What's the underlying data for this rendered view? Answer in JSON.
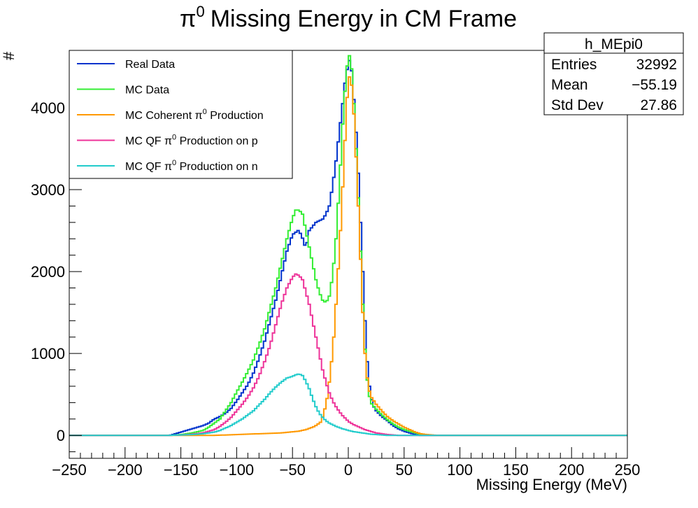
{
  "chart_data": {
    "type": "line",
    "title_main": "Missing Energy in CM Frame",
    "title_symbol": "π",
    "title_superscript": "0",
    "xlabel": "Missing Energy (MeV)",
    "ylabel": "#",
    "xlim": [
      -250,
      250
    ],
    "ylim": [
      -280,
      4700
    ],
    "x_ticks": [
      -250,
      -200,
      -150,
      -100,
      -50,
      0,
      50,
      100,
      150,
      200,
      250
    ],
    "x_tick_labels": [
      "−250",
      "−200",
      "−150",
      "−100",
      "−50",
      "0",
      "50",
      "100",
      "150",
      "200",
      "250"
    ],
    "y_ticks": [
      0,
      1000,
      2000,
      3000,
      4000
    ],
    "y_tick_labels": [
      "0",
      "1000",
      "2000",
      "3000",
      "4000"
    ],
    "grid": false,
    "legend_placement": "top-left",
    "stats_box": {
      "name": "h_MEpi0",
      "rows": [
        {
          "label": "Entries",
          "value": "32992"
        },
        {
          "label": "Mean",
          "value": "−55.19"
        },
        {
          "label": "Std Dev",
          "value": "27.86"
        }
      ]
    },
    "series": [
      {
        "name": "Real Data",
        "color": "#0033cc",
        "points": [
          [
            -250,
            0
          ],
          [
            -160,
            0
          ],
          [
            -155,
            20
          ],
          [
            -150,
            40
          ],
          [
            -145,
            60
          ],
          [
            -140,
            80
          ],
          [
            -135,
            100
          ],
          [
            -130,
            120
          ],
          [
            -125,
            150
          ],
          [
            -120,
            200
          ],
          [
            -115,
            230
          ],
          [
            -110,
            270
          ],
          [
            -105,
            330
          ],
          [
            -100,
            420
          ],
          [
            -95,
            520
          ],
          [
            -90,
            620
          ],
          [
            -85,
            760
          ],
          [
            -80,
            940
          ],
          [
            -75,
            1150
          ],
          [
            -70,
            1400
          ],
          [
            -65,
            1650
          ],
          [
            -60,
            1950
          ],
          [
            -55,
            2250
          ],
          [
            -50,
            2450
          ],
          [
            -45,
            2500
          ],
          [
            -42,
            2450
          ],
          [
            -38,
            2280
          ],
          [
            -35,
            2500
          ],
          [
            -32,
            2550
          ],
          [
            -29,
            2600
          ],
          [
            -26,
            2620
          ],
          [
            -23,
            2640
          ],
          [
            -20,
            2700
          ],
          [
            -17,
            2800
          ],
          [
            -14,
            3050
          ],
          [
            -11,
            3350
          ],
          [
            -8,
            3700
          ],
          [
            -5,
            4050
          ],
          [
            -3,
            4300
          ],
          [
            0,
            4550
          ],
          [
            2,
            4600
          ],
          [
            4,
            4300
          ],
          [
            6,
            3900
          ],
          [
            8,
            3500
          ],
          [
            10,
            2900
          ],
          [
            12,
            2300
          ],
          [
            14,
            1700
          ],
          [
            16,
            1100
          ],
          [
            18,
            700
          ],
          [
            20,
            500
          ],
          [
            22,
            370
          ],
          [
            25,
            300
          ],
          [
            30,
            230
          ],
          [
            35,
            180
          ],
          [
            40,
            120
          ],
          [
            45,
            80
          ],
          [
            50,
            50
          ],
          [
            55,
            30
          ],
          [
            60,
            10
          ],
          [
            65,
            0
          ],
          [
            250,
            0
          ]
        ]
      },
      {
        "name": "MC Data",
        "color": "#33ee33",
        "points": [
          [
            -250,
            0
          ],
          [
            -160,
            0
          ],
          [
            -150,
            10
          ],
          [
            -140,
            30
          ],
          [
            -130,
            60
          ],
          [
            -125,
            100
          ],
          [
            -120,
            150
          ],
          [
            -115,
            200
          ],
          [
            -110,
            300
          ],
          [
            -105,
            400
          ],
          [
            -100,
            530
          ],
          [
            -95,
            650
          ],
          [
            -90,
            780
          ],
          [
            -85,
            920
          ],
          [
            -80,
            1100
          ],
          [
            -75,
            1300
          ],
          [
            -70,
            1550
          ],
          [
            -65,
            1800
          ],
          [
            -60,
            2100
          ],
          [
            -55,
            2400
          ],
          [
            -50,
            2650
          ],
          [
            -47,
            2750
          ],
          [
            -44,
            2750
          ],
          [
            -41,
            2700
          ],
          [
            -38,
            2500
          ],
          [
            -35,
            2300
          ],
          [
            -32,
            2100
          ],
          [
            -29,
            1900
          ],
          [
            -26,
            1750
          ],
          [
            -23,
            1650
          ],
          [
            -20,
            1620
          ],
          [
            -17,
            1700
          ],
          [
            -14,
            1950
          ],
          [
            -11,
            2400
          ],
          [
            -8,
            3050
          ],
          [
            -5,
            3800
          ],
          [
            -2,
            4400
          ],
          [
            0,
            4620
          ],
          [
            2,
            4650
          ],
          [
            4,
            4300
          ],
          [
            6,
            3800
          ],
          [
            8,
            3200
          ],
          [
            10,
            2600
          ],
          [
            12,
            1900
          ],
          [
            14,
            1300
          ],
          [
            16,
            800
          ],
          [
            18,
            550
          ],
          [
            20,
            400
          ],
          [
            25,
            320
          ],
          [
            30,
            250
          ],
          [
            35,
            190
          ],
          [
            40,
            140
          ],
          [
            45,
            100
          ],
          [
            50,
            70
          ],
          [
            55,
            50
          ],
          [
            60,
            30
          ],
          [
            65,
            15
          ],
          [
            70,
            5
          ],
          [
            75,
            0
          ],
          [
            250,
            0
          ]
        ]
      },
      {
        "name": "MC Coherent π<sup>0</sup> Production",
        "color": "#ff9900",
        "points": [
          [
            -250,
            0
          ],
          [
            -160,
            0
          ],
          [
            -120,
            0
          ],
          [
            -100,
            10
          ],
          [
            -80,
            20
          ],
          [
            -60,
            30
          ],
          [
            -45,
            50
          ],
          [
            -38,
            70
          ],
          [
            -30,
            110
          ],
          [
            -25,
            160
          ],
          [
            -22,
            260
          ],
          [
            -19,
            450
          ],
          [
            -16,
            750
          ],
          [
            -13,
            1200
          ],
          [
            -10,
            1800
          ],
          [
            -7,
            2500
          ],
          [
            -4,
            3300
          ],
          [
            -2,
            3900
          ],
          [
            0,
            4350
          ],
          [
            2,
            4400
          ],
          [
            4,
            4150
          ],
          [
            6,
            3700
          ],
          [
            8,
            3100
          ],
          [
            10,
            2500
          ],
          [
            12,
            1800
          ],
          [
            14,
            1200
          ],
          [
            16,
            800
          ],
          [
            18,
            600
          ],
          [
            20,
            480
          ],
          [
            25,
            380
          ],
          [
            30,
            300
          ],
          [
            35,
            230
          ],
          [
            40,
            180
          ],
          [
            45,
            140
          ],
          [
            50,
            100
          ],
          [
            55,
            70
          ],
          [
            60,
            40
          ],
          [
            65,
            20
          ],
          [
            70,
            10
          ],
          [
            80,
            0
          ],
          [
            250,
            0
          ]
        ]
      },
      {
        "name": "MC QF π<sup>0</sup> Production on p",
        "color": "#ee3399",
        "points": [
          [
            -250,
            0
          ],
          [
            -160,
            0
          ],
          [
            -150,
            5
          ],
          [
            -140,
            15
          ],
          [
            -130,
            30
          ],
          [
            -120,
            70
          ],
          [
            -115,
            110
          ],
          [
            -110,
            160
          ],
          [
            -105,
            220
          ],
          [
            -100,
            300
          ],
          [
            -95,
            380
          ],
          [
            -90,
            470
          ],
          [
            -85,
            580
          ],
          [
            -80,
            720
          ],
          [
            -75,
            900
          ],
          [
            -70,
            1100
          ],
          [
            -65,
            1350
          ],
          [
            -60,
            1600
          ],
          [
            -55,
            1800
          ],
          [
            -50,
            1930
          ],
          [
            -47,
            1970
          ],
          [
            -44,
            1950
          ],
          [
            -41,
            1900
          ],
          [
            -38,
            1750
          ],
          [
            -35,
            1600
          ],
          [
            -32,
            1400
          ],
          [
            -29,
            1200
          ],
          [
            -26,
            1000
          ],
          [
            -23,
            800
          ],
          [
            -20,
            650
          ],
          [
            -17,
            520
          ],
          [
            -14,
            420
          ],
          [
            -11,
            350
          ],
          [
            -8,
            290
          ],
          [
            -5,
            240
          ],
          [
            -2,
            200
          ],
          [
            0,
            170
          ],
          [
            5,
            130
          ],
          [
            10,
            100
          ],
          [
            15,
            70
          ],
          [
            20,
            50
          ],
          [
            25,
            30
          ],
          [
            30,
            20
          ],
          [
            35,
            10
          ],
          [
            40,
            5
          ],
          [
            45,
            0
          ],
          [
            250,
            0
          ]
        ]
      },
      {
        "name": "MC QF π<sup>0</sup> Production on n",
        "color": "#22cccc",
        "points": [
          [
            -250,
            0
          ],
          [
            -160,
            0
          ],
          [
            -150,
            5
          ],
          [
            -140,
            10
          ],
          [
            -130,
            20
          ],
          [
            -120,
            40
          ],
          [
            -115,
            60
          ],
          [
            -110,
            90
          ],
          [
            -105,
            120
          ],
          [
            -100,
            160
          ],
          [
            -95,
            200
          ],
          [
            -90,
            250
          ],
          [
            -85,
            300
          ],
          [
            -80,
            370
          ],
          [
            -75,
            440
          ],
          [
            -70,
            520
          ],
          [
            -65,
            590
          ],
          [
            -60,
            650
          ],
          [
            -55,
            700
          ],
          [
            -50,
            720
          ],
          [
            -47,
            740
          ],
          [
            -44,
            750
          ],
          [
            -41,
            730
          ],
          [
            -38,
            660
          ],
          [
            -35,
            570
          ],
          [
            -32,
            450
          ],
          [
            -29,
            350
          ],
          [
            -26,
            270
          ],
          [
            -23,
            220
          ],
          [
            -20,
            180
          ],
          [
            -17,
            150
          ],
          [
            -14,
            130
          ],
          [
            -11,
            110
          ],
          [
            -8,
            95
          ],
          [
            -5,
            80
          ],
          [
            -2,
            70
          ],
          [
            0,
            60
          ],
          [
            5,
            45
          ],
          [
            10,
            35
          ],
          [
            15,
            25
          ],
          [
            20,
            15
          ],
          [
            25,
            10
          ],
          [
            30,
            5
          ],
          [
            35,
            0
          ],
          [
            250,
            0
          ]
        ]
      }
    ]
  }
}
